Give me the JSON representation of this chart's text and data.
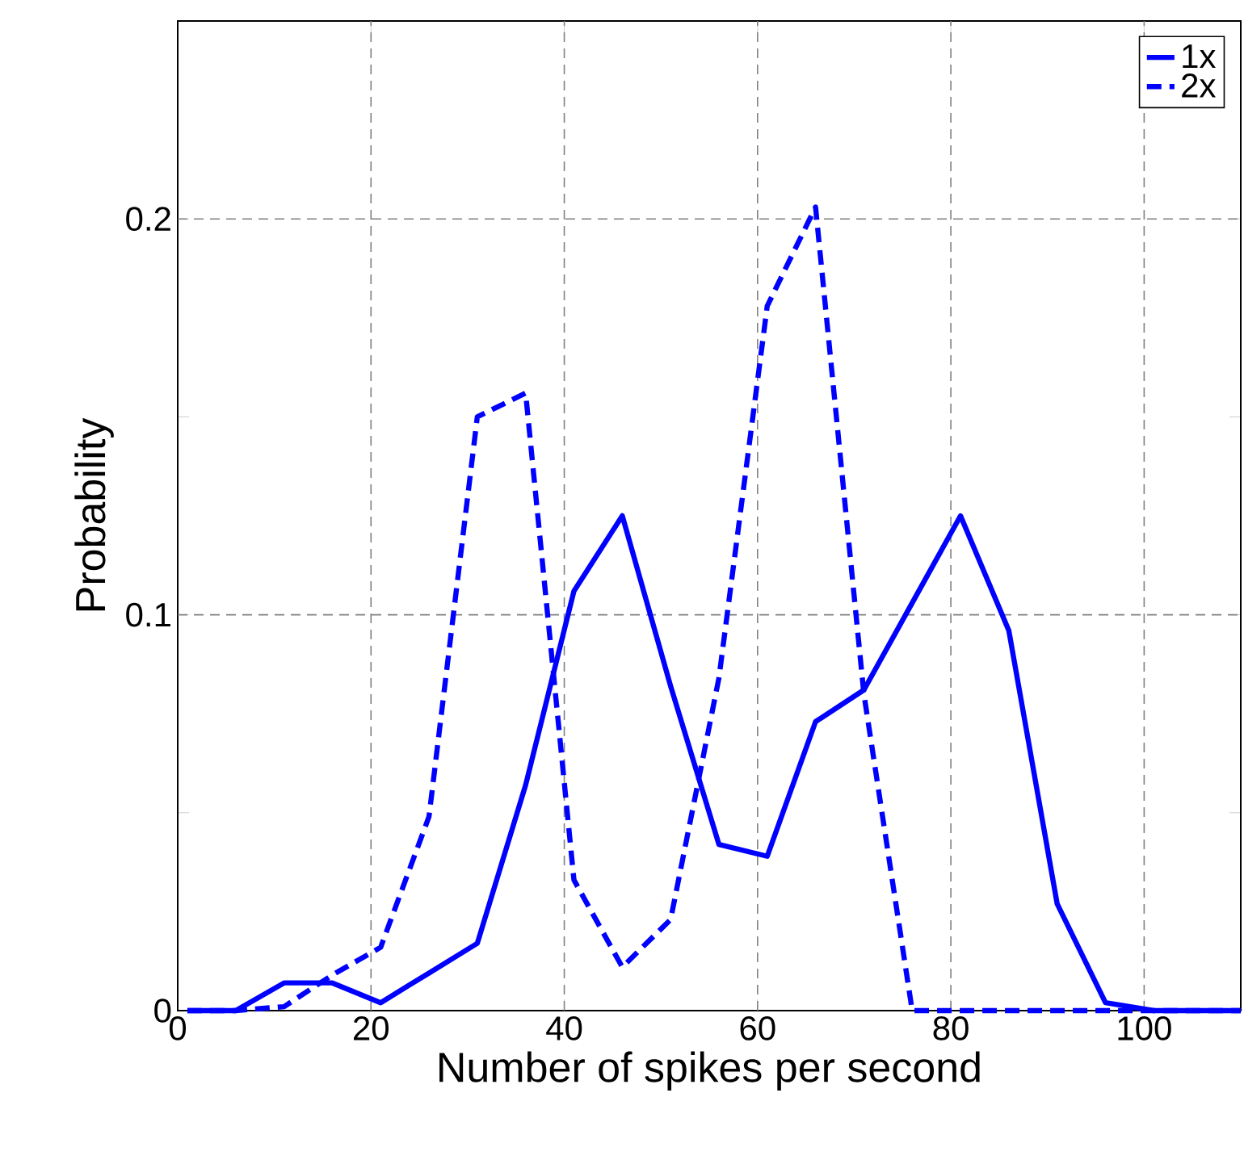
{
  "chart_data": {
    "type": "line",
    "xlabel": "Number of spikes per second",
    "ylabel": "Probability",
    "x": [
      1,
      6,
      11,
      16,
      21,
      26,
      31,
      36,
      41,
      46,
      51,
      56,
      61,
      66,
      71,
      76,
      81,
      86,
      91,
      96,
      101,
      106,
      110
    ],
    "series": [
      {
        "name": "1x",
        "color": "#0000ff",
        "line_style": "solid",
        "values": [
          0,
          0,
          0.007,
          0.007,
          0.002,
          0.0095,
          0.017,
          0.057,
          0.106,
          0.125,
          0.082,
          0.042,
          0.039,
          0.073,
          0.081,
          0.103,
          0.125,
          0.096,
          0.027,
          0.002,
          0,
          0,
          0
        ]
      },
      {
        "name": "2x",
        "color": "#0000ff",
        "line_style": "dashed",
        "values": [
          0,
          0,
          0.001,
          0.009,
          0.016,
          0.049,
          0.15,
          0.156,
          0.033,
          0.011,
          0.023,
          0.084,
          0.178,
          0.203,
          0.08,
          0,
          0,
          0,
          0,
          0,
          0,
          0,
          0
        ]
      }
    ],
    "xlim": [
      0,
      110
    ],
    "ylim": [
      0,
      0.25
    ],
    "xticks": [
      0,
      20,
      40,
      60,
      80,
      100
    ],
    "yticks": [
      0,
      {
        "value": 0.05,
        "label": null
      },
      0.1,
      {
        "value": 0.15,
        "label": null
      },
      0.2
    ],
    "grid": true,
    "legend": "top right",
    "marker": "none"
  }
}
